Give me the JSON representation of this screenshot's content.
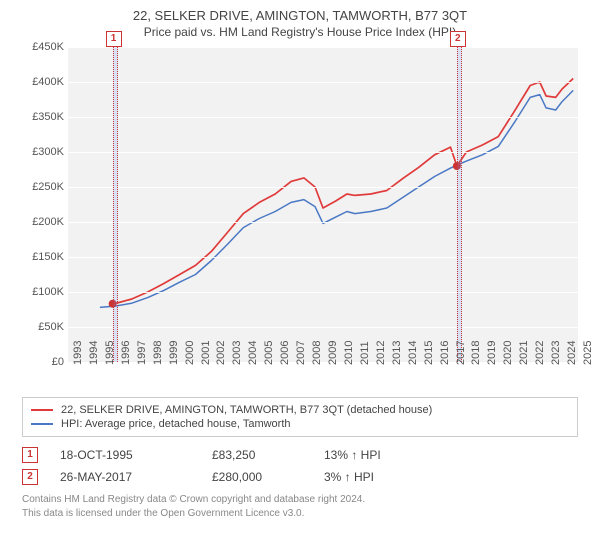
{
  "title_line1": "22, SELKER DRIVE, AMINGTON, TAMWORTH, B77 3QT",
  "title_line2": "Price paid vs. HM Land Registry's House Price Index (HPI)",
  "chart": {
    "type": "line",
    "background_color": "#f2f2f2",
    "grid_color": "#ffffff",
    "x": {
      "min": 1993,
      "max": 2025,
      "step": 1
    },
    "y": {
      "min": 0,
      "max": 450000,
      "step": 50000,
      "prefix": "£",
      "suffix": "K",
      "divisor": 1000
    },
    "bands": [
      {
        "x": 1995.8,
        "width_years": 0.15
      },
      {
        "x": 2017.4,
        "width_years": 0.15
      }
    ],
    "markers": [
      {
        "label": "1",
        "x": 1995.86,
        "y_top_offset": -16
      },
      {
        "label": "2",
        "x": 2017.46,
        "y_top_offset": -16
      }
    ],
    "points": [
      {
        "x": 1995.8,
        "y": 83250,
        "color": "#cc3333"
      },
      {
        "x": 2017.4,
        "y": 280000,
        "color": "#cc3333"
      }
    ],
    "series": [
      {
        "label": "22, SELKER DRIVE, AMINGTON, TAMWORTH, B77 3QT (detached house)",
        "color": "#e03a3a",
        "width": 1.7,
        "data": [
          [
            1995.8,
            83250
          ],
          [
            1996.2,
            85000
          ],
          [
            1997,
            90000
          ],
          [
            1998,
            100000
          ],
          [
            1999,
            112000
          ],
          [
            2000,
            125000
          ],
          [
            2001,
            138000
          ],
          [
            2002,
            158000
          ],
          [
            2003,
            185000
          ],
          [
            2004,
            212000
          ],
          [
            2005,
            228000
          ],
          [
            2006,
            240000
          ],
          [
            2007,
            258000
          ],
          [
            2007.8,
            263000
          ],
          [
            2008.5,
            250000
          ],
          [
            2009,
            220000
          ],
          [
            2009.8,
            230000
          ],
          [
            2010.5,
            240000
          ],
          [
            2011,
            238000
          ],
          [
            2012,
            240000
          ],
          [
            2013,
            245000
          ],
          [
            2014,
            262000
          ],
          [
            2015,
            278000
          ],
          [
            2016,
            296000
          ],
          [
            2017,
            307000
          ],
          [
            2017.4,
            280000
          ],
          [
            2018,
            300000
          ],
          [
            2019,
            310000
          ],
          [
            2020,
            322000
          ],
          [
            2021,
            358000
          ],
          [
            2022,
            395000
          ],
          [
            2022.6,
            400000
          ],
          [
            2023,
            380000
          ],
          [
            2023.6,
            378000
          ],
          [
            2024,
            390000
          ],
          [
            2024.7,
            405000
          ]
        ]
      },
      {
        "label": "HPI: Average price, detached house, Tamworth",
        "color": "#4a78c4",
        "width": 1.5,
        "data": [
          [
            1995,
            78000
          ],
          [
            1996,
            80000
          ],
          [
            1997,
            84000
          ],
          [
            1998,
            92000
          ],
          [
            1999,
            102000
          ],
          [
            2000,
            114000
          ],
          [
            2001,
            125000
          ],
          [
            2002,
            145000
          ],
          [
            2003,
            168000
          ],
          [
            2004,
            192000
          ],
          [
            2005,
            205000
          ],
          [
            2006,
            215000
          ],
          [
            2007,
            228000
          ],
          [
            2007.8,
            232000
          ],
          [
            2008.5,
            222000
          ],
          [
            2009,
            198000
          ],
          [
            2009.8,
            207000
          ],
          [
            2010.5,
            215000
          ],
          [
            2011,
            212000
          ],
          [
            2012,
            215000
          ],
          [
            2013,
            220000
          ],
          [
            2014,
            235000
          ],
          [
            2015,
            250000
          ],
          [
            2016,
            265000
          ],
          [
            2017,
            277000
          ],
          [
            2018,
            287000
          ],
          [
            2019,
            296000
          ],
          [
            2020,
            308000
          ],
          [
            2021,
            342000
          ],
          [
            2022,
            378000
          ],
          [
            2022.6,
            382000
          ],
          [
            2023,
            363000
          ],
          [
            2023.6,
            360000
          ],
          [
            2024,
            372000
          ],
          [
            2024.7,
            388000
          ]
        ]
      }
    ]
  },
  "legend": {
    "items": [
      {
        "color": "#e03a3a",
        "text": "22, SELKER DRIVE, AMINGTON, TAMWORTH, B77 3QT (detached house)"
      },
      {
        "color": "#4a78c4",
        "text": "HPI: Average price, detached house, Tamworth"
      }
    ]
  },
  "transactions": [
    {
      "n": "1",
      "date": "18-OCT-1995",
      "price": "£83,250",
      "pct": "13% ↑ HPI"
    },
    {
      "n": "2",
      "date": "26-MAY-2017",
      "price": "£280,000",
      "pct": "3% ↑ HPI"
    }
  ],
  "footer_l1": "Contains HM Land Registry data © Crown copyright and database right 2024.",
  "footer_l2": "This data is licensed under the Open Government Licence v3.0."
}
